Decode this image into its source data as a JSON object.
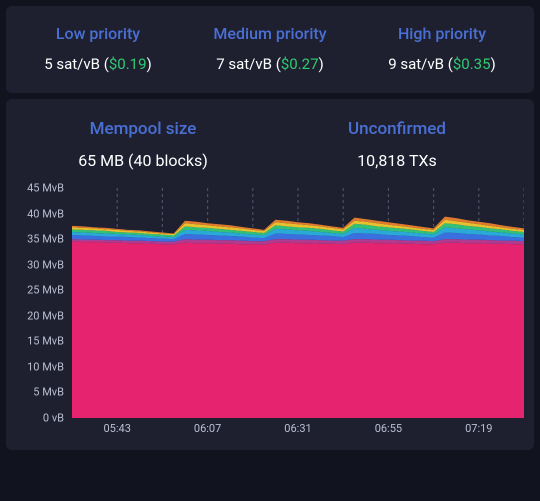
{
  "colors": {
    "page_bg": "#11131f",
    "panel_bg": "#1e2030",
    "heading": "#4a6fd4",
    "text": "#ffffff",
    "fiat": "#2ecc71",
    "axis_text": "#bbbfd0",
    "grid": "#4d526b"
  },
  "priority": {
    "low": {
      "title": "Low priority",
      "rate": "5 sat/vB",
      "fiat": "$0.19"
    },
    "med": {
      "title": "Medium priority",
      "rate": "7 sat/vB",
      "fiat": "$0.27"
    },
    "high": {
      "title": "High priority",
      "rate": "9 sat/vB",
      "fiat": "$0.35"
    }
  },
  "mempool": {
    "size": {
      "title": "Mempool size",
      "value": "65 MB (40 blocks)"
    },
    "unconfirmed": {
      "title": "Unconfirmed",
      "value": "10,818 TXs"
    }
  },
  "chart": {
    "type": "area-stacked",
    "y": {
      "min": 0,
      "max": 45,
      "step": 5,
      "unit": "MvB",
      "ticks": [
        "45 MvB",
        "40 MvB",
        "35 MvB",
        "30 MvB",
        "25 MvB",
        "20 MvB",
        "15 MvB",
        "10 MvB",
        "5 MvB",
        "0 vB"
      ]
    },
    "x": {
      "ticks": [
        "05:43",
        "06:07",
        "06:31",
        "06:55",
        "07:19"
      ],
      "tick_positions_pct": [
        10,
        30,
        50,
        70,
        90
      ]
    },
    "grid_x_positions_pct": [
      10,
      20,
      30,
      40,
      50,
      60,
      70,
      80,
      90,
      100
    ],
    "series_colors": {
      "base": "#e6236f",
      "band2": "#b23a8e",
      "band3": "#3a6fe0",
      "band4": "#2aa8d8",
      "band5": "#33c17a",
      "band6": "#e8c22e",
      "band7": "#e07b2e"
    },
    "n_points": 41,
    "series_top": {
      "base": [
        34.5,
        34.4,
        34.4,
        34.3,
        34.3,
        34.2,
        34.2,
        34.1,
        34.0,
        34.0,
        34.3,
        34.2,
        34.2,
        34.1,
        34.1,
        34.0,
        34.0,
        33.9,
        34.3,
        34.3,
        34.2,
        34.2,
        34.1,
        34.1,
        34.0,
        34.3,
        34.3,
        34.2,
        34.2,
        34.1,
        34.1,
        34.0,
        34.0,
        34.3,
        34.3,
        34.2,
        34.2,
        34.1,
        34.1,
        34.0,
        34.0
      ],
      "band2": [
        35.0,
        34.9,
        34.9,
        34.8,
        34.8,
        34.7,
        34.7,
        34.6,
        34.5,
        34.5,
        35.0,
        34.9,
        34.9,
        34.8,
        34.8,
        34.7,
        34.6,
        34.6,
        35.0,
        35.0,
        34.9,
        34.9,
        34.8,
        34.7,
        34.7,
        35.0,
        35.0,
        34.9,
        34.9,
        34.8,
        34.7,
        34.7,
        34.6,
        35.0,
        35.0,
        34.9,
        34.9,
        34.8,
        34.7,
        34.7,
        34.6
      ],
      "band3": [
        35.8,
        35.7,
        35.6,
        35.5,
        35.5,
        35.4,
        35.3,
        35.2,
        35.1,
        35.0,
        36.0,
        35.9,
        35.8,
        35.7,
        35.6,
        35.5,
        35.3,
        35.2,
        36.1,
        36.0,
        35.9,
        35.8,
        35.7,
        35.6,
        35.4,
        36.2,
        36.1,
        36.0,
        35.8,
        35.7,
        35.6,
        35.4,
        35.3,
        36.3,
        36.2,
        36.0,
        35.9,
        35.7,
        35.6,
        35.4,
        35.3
      ],
      "band4": [
        36.4,
        36.3,
        36.2,
        36.1,
        36.0,
        35.9,
        35.8,
        35.6,
        35.5,
        35.4,
        36.8,
        36.7,
        36.6,
        36.4,
        36.3,
        36.1,
        35.9,
        35.8,
        37.0,
        36.9,
        36.7,
        36.6,
        36.4,
        36.2,
        36.0,
        37.2,
        37.0,
        36.8,
        36.6,
        36.5,
        36.3,
        36.1,
        35.9,
        37.3,
        37.1,
        36.9,
        36.7,
        36.5,
        36.3,
        36.1,
        35.9
      ],
      "band5": [
        36.9,
        36.8,
        36.7,
        36.6,
        36.4,
        36.3,
        36.2,
        36.0,
        35.9,
        35.7,
        37.5,
        37.3,
        37.2,
        37.0,
        36.8,
        36.6,
        36.4,
        36.2,
        37.7,
        37.5,
        37.3,
        37.2,
        37.0,
        36.7,
        36.5,
        38.0,
        37.8,
        37.5,
        37.3,
        37.1,
        36.9,
        36.6,
        36.4,
        38.1,
        37.9,
        37.6,
        37.4,
        37.1,
        36.9,
        36.6,
        36.4
      ],
      "band6": [
        37.3,
        37.2,
        37.1,
        36.9,
        36.8,
        36.6,
        36.5,
        36.3,
        36.1,
        36.0,
        38.1,
        37.9,
        37.7,
        37.5,
        37.3,
        37.1,
        36.8,
        36.6,
        38.3,
        38.1,
        37.9,
        37.7,
        37.5,
        37.2,
        36.9,
        38.6,
        38.4,
        38.1,
        37.8,
        37.6,
        37.3,
        37.0,
        36.8,
        38.8,
        38.5,
        38.2,
        37.9,
        37.6,
        37.3,
        37.0,
        36.8
      ],
      "band7": [
        37.6,
        37.5,
        37.3,
        37.2,
        37.0,
        36.8,
        36.7,
        36.5,
        36.3,
        36.1,
        38.6,
        38.4,
        38.1,
        37.9,
        37.7,
        37.4,
        37.1,
        36.8,
        38.8,
        38.6,
        38.3,
        38.1,
        37.8,
        37.5,
        37.2,
        39.2,
        38.9,
        38.6,
        38.3,
        38.0,
        37.7,
        37.4,
        37.1,
        39.4,
        39.1,
        38.7,
        38.4,
        38.1,
        37.7,
        37.4,
        37.1
      ]
    }
  }
}
